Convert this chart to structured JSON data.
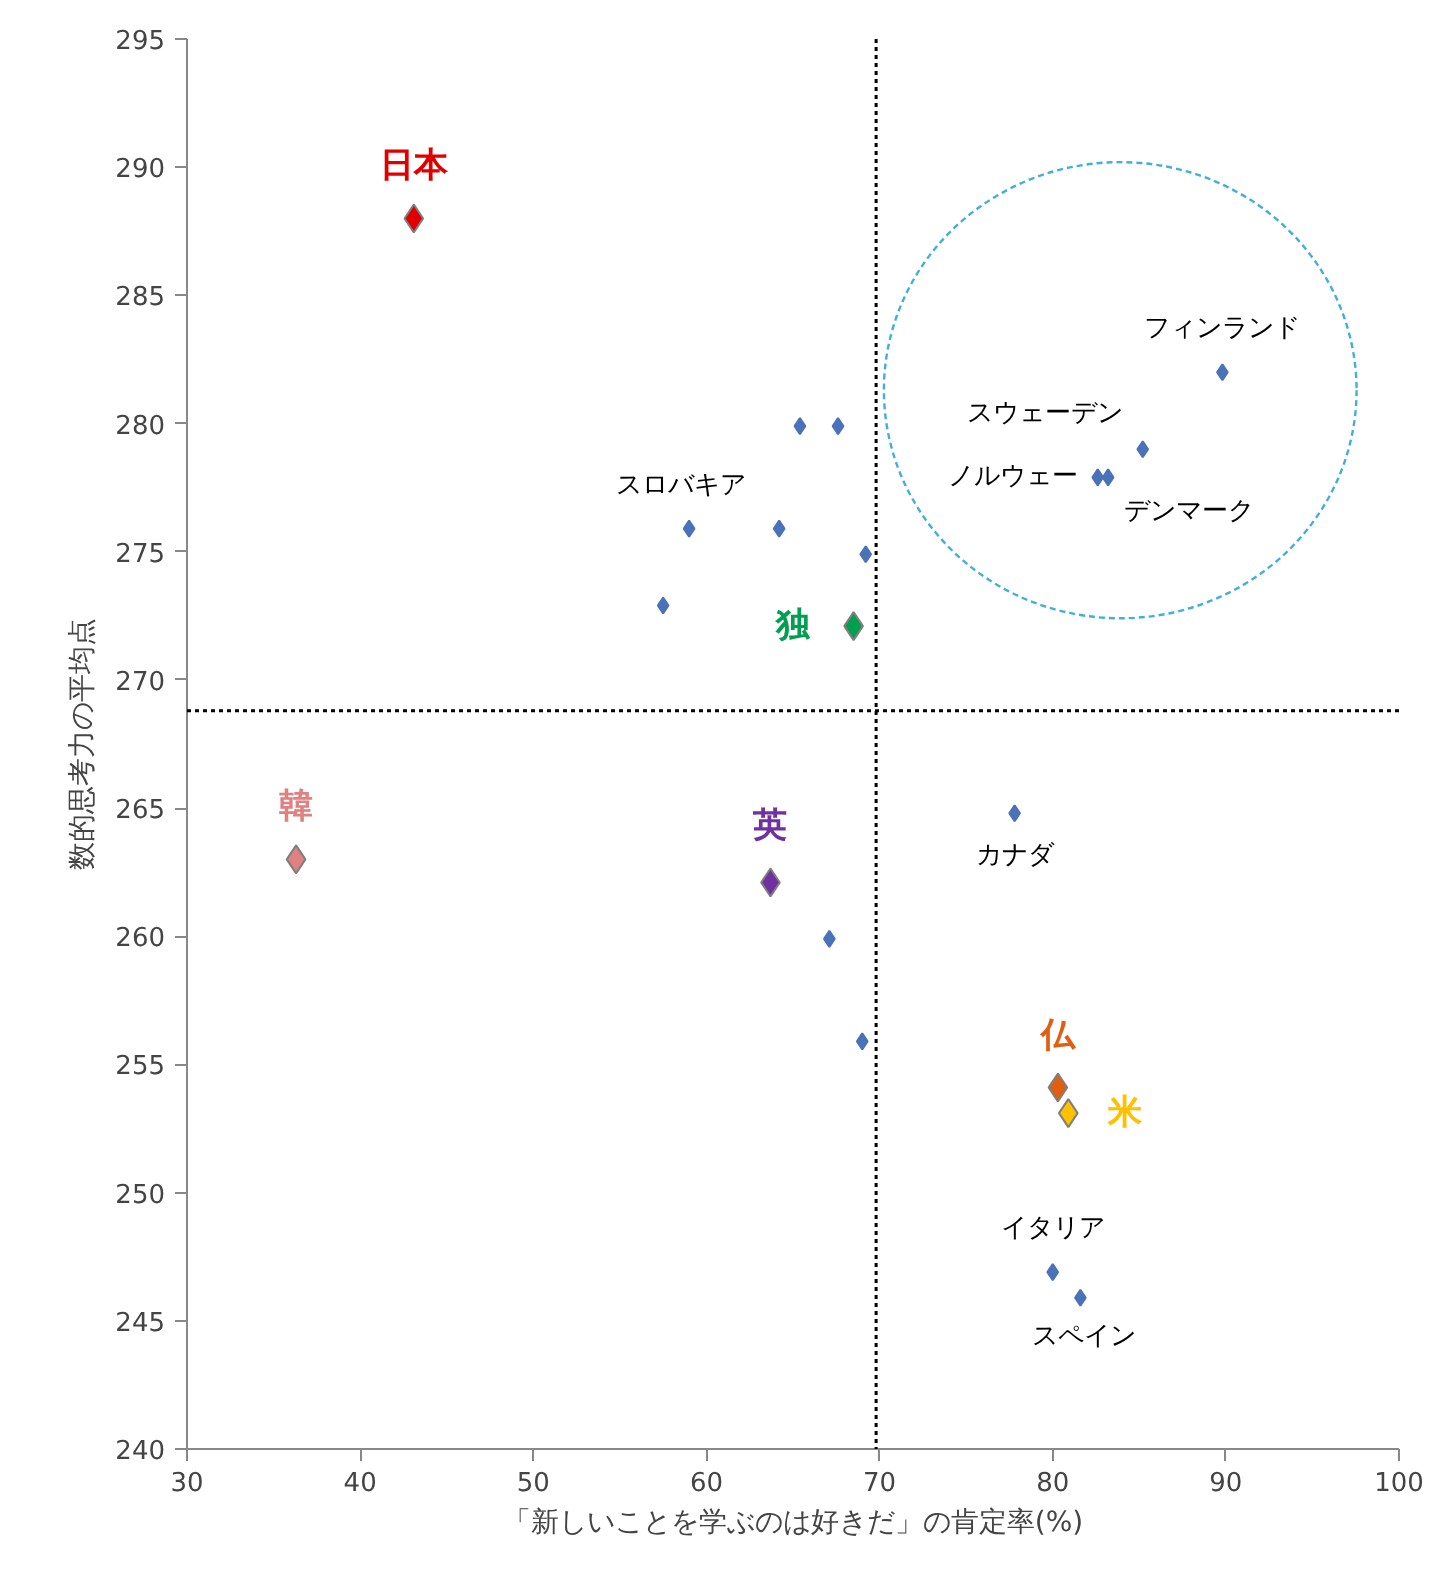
{
  "chart_data": {
    "type": "scatter",
    "xlabel": "「新しいことを学ぶのは好きだ」の肯定率(%)",
    "ylabel": "数的思考力の平均点",
    "xlim": [
      30,
      100
    ],
    "ylim": [
      240,
      295
    ],
    "xticks": [
      30,
      40,
      50,
      60,
      70,
      80,
      90,
      100
    ],
    "yticks": [
      240,
      245,
      250,
      255,
      260,
      265,
      270,
      275,
      280,
      285,
      290,
      295
    ],
    "grid": false,
    "marker": "diamond",
    "series": [
      {
        "color": "#4a72b8",
        "x": [
          89.8,
          85.2,
          82.6,
          83.2,
          59.0,
          57.5,
          65.4,
          67.6,
          64.2,
          69.2,
          77.8,
          67.1,
          69.0,
          80.0,
          81.6
        ],
        "values": [
          282.0,
          279.0,
          277.9,
          277.9,
          275.9,
          272.9,
          279.9,
          279.9,
          275.9,
          274.9,
          264.8,
          259.9,
          255.9,
          246.9,
          245.9
        ]
      },
      {
        "name": "日本",
        "color": "#e00000",
        "x": [
          43.1
        ],
        "values": [
          288.0
        ]
      },
      {
        "name": "独",
        "color": "#00a050",
        "x": [
          68.5
        ],
        "values": [
          272.1
        ]
      },
      {
        "name": "韓",
        "color": "#e08080",
        "x": [
          36.3
        ],
        "values": [
          263.0
        ]
      },
      {
        "name": "英",
        "color": "#7030a0",
        "x": [
          63.7
        ],
        "values": [
          262.1
        ]
      },
      {
        "name": "仏",
        "color": "#e06010",
        "x": [
          80.3
        ],
        "values": [
          254.1
        ]
      },
      {
        "name": "米",
        "color": "#ffc000",
        "x": [
          80.9
        ],
        "values": [
          253.1
        ]
      }
    ],
    "ref_lines": [
      {
        "axis": "x",
        "value": 69.8,
        "line_style": "dotted",
        "color": "#000000"
      },
      {
        "axis": "y",
        "value": 268.8,
        "line_style": "dotted",
        "color": "#000000"
      }
    ],
    "annotations": [
      {
        "text": "フィンランド",
        "x": 89.8,
        "y": 282.0
      },
      {
        "text": "スウェーデン",
        "x": 85.2,
        "y": 279.0
      },
      {
        "text": "ノルウェー",
        "x": 82.6,
        "y": 277.9
      },
      {
        "text": "デンマーク",
        "x": 83.2,
        "y": 277.9
      },
      {
        "text": "スロバキア",
        "x": 59.0,
        "y": 275.9
      },
      {
        "text": "カナダ",
        "x": 77.8,
        "y": 264.8
      },
      {
        "text": "イタリア",
        "x": 80.0,
        "y": 246.9
      },
      {
        "text": "スペイン",
        "x": 81.6,
        "y": 245.9
      }
    ]
  }
}
